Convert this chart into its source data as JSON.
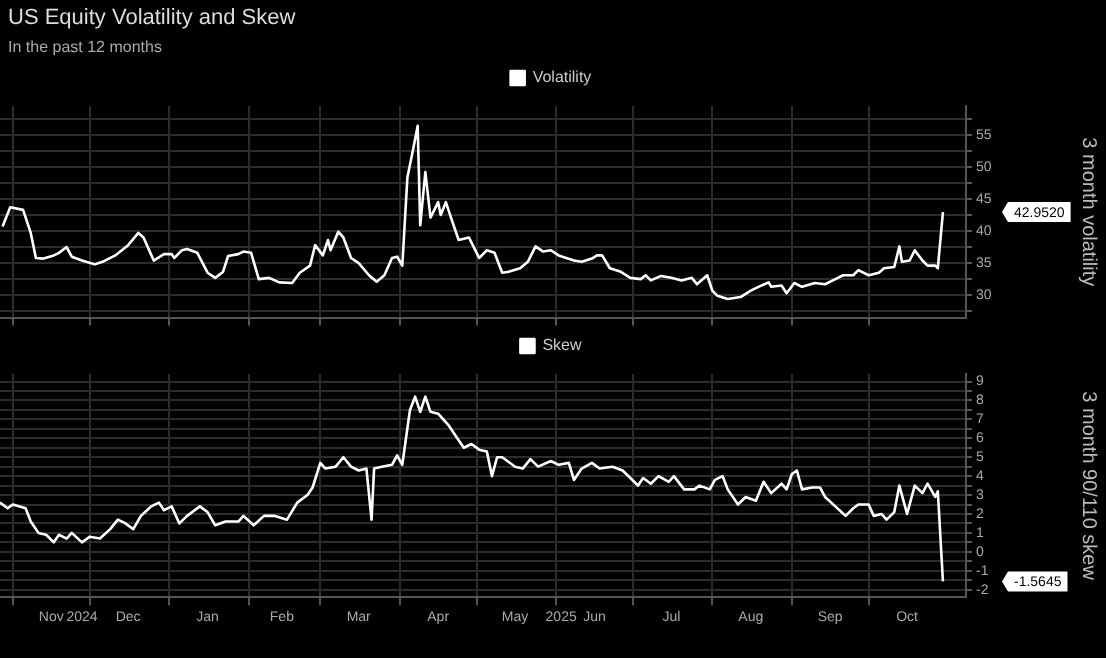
{
  "chart_data": [
    {
      "type": "line",
      "title": "US Equity Volatility and Skew",
      "subtitle": "In the past 12 months",
      "ylabel": "3 month volatility",
      "x": [
        "2024-10-28",
        "2024-10-31",
        "2024-11-05",
        "2024-11-08",
        "2024-11-10",
        "2024-11-13",
        "2024-11-17",
        "2024-11-19",
        "2024-11-22",
        "2024-11-24",
        "2024-11-28",
        "2024-12-03",
        "2024-12-06",
        "2024-12-11",
        "2024-12-16",
        "2024-12-20",
        "2024-12-22",
        "2024-12-26",
        "2024-12-30",
        "2025-01-02",
        "2025-01-03",
        "2025-01-06",
        "2025-01-08",
        "2025-01-12",
        "2025-01-16",
        "2025-01-19",
        "2025-01-22",
        "2025-01-24",
        "2025-01-28",
        "2025-01-30",
        "2025-02-02",
        "2025-02-05",
        "2025-02-09",
        "2025-02-13",
        "2025-02-18",
        "2025-02-21",
        "2025-02-25",
        "2025-02-27",
        "2025-03-02",
        "2025-03-04",
        "2025-03-05",
        "2025-03-08",
        "2025-03-10",
        "2025-03-13",
        "2025-03-16",
        "2025-03-20",
        "2025-03-23",
        "2025-03-26",
        "2025-03-29",
        "2025-03-31",
        "2025-04-02",
        "2025-04-04",
        "2025-04-06",
        "2025-04-08",
        "2025-04-09",
        "2025-04-11",
        "2025-04-13",
        "2025-04-16",
        "2025-04-17",
        "2025-04-19",
        "2025-04-21",
        "2025-04-24",
        "2025-04-28",
        "2025-05-02",
        "2025-05-05",
        "2025-05-08",
        "2025-05-11",
        "2025-05-13",
        "2025-05-18",
        "2025-05-21",
        "2025-05-24",
        "2025-05-27",
        "2025-05-30",
        "2025-06-02",
        "2025-06-05",
        "2025-06-08",
        "2025-06-11",
        "2025-06-15",
        "2025-06-17",
        "2025-06-19",
        "2025-06-22",
        "2025-06-26",
        "2025-06-30",
        "2025-07-04",
        "2025-07-06",
        "2025-07-08",
        "2025-07-12",
        "2025-07-16",
        "2025-07-20",
        "2025-07-24",
        "2025-07-26",
        "2025-07-30",
        "2025-08-01",
        "2025-08-03",
        "2025-08-07",
        "2025-08-12",
        "2025-08-16",
        "2025-08-19",
        "2025-08-23",
        "2025-08-24",
        "2025-08-28",
        "2025-08-30",
        "2025-09-02",
        "2025-09-05",
        "2025-09-10",
        "2025-09-14",
        "2025-09-18",
        "2025-09-21",
        "2025-09-25",
        "2025-09-27",
        "2025-10-01",
        "2025-10-05",
        "2025-10-07",
        "2025-10-11",
        "2025-10-13",
        "2025-10-14",
        "2025-10-17",
        "2025-10-19",
        "2025-10-22",
        "2025-10-24",
        "2025-10-27",
        "2025-10-28",
        "2025-10-30"
      ],
      "series": [
        {
          "name": "Volatility",
          "color": "#ffffff",
          "values": [
            40.7,
            43.7,
            43.3,
            39.7,
            35.8,
            35.7,
            36.2,
            36.6,
            37.5,
            36.0,
            35.4,
            34.8,
            35.2,
            36.2,
            37.8,
            39.7,
            39.0,
            35.4,
            36.4,
            36.4,
            35.8,
            37.0,
            37.2,
            36.6,
            33.5,
            32.7,
            33.6,
            36.1,
            36.4,
            36.8,
            36.6,
            32.5,
            32.7,
            32.0,
            31.9,
            33.5,
            34.6,
            37.8,
            36.2,
            38.6,
            37.0,
            39.9,
            39.0,
            35.8,
            35.0,
            33.1,
            32.1,
            33.1,
            35.8,
            36.0,
            34.6,
            48.4,
            52.3,
            56.4,
            40.9,
            49.2,
            42.1,
            44.5,
            42.5,
            44.5,
            42.1,
            38.6,
            39.0,
            35.8,
            37.0,
            36.6,
            33.5,
            33.6,
            34.2,
            35.2,
            37.6,
            36.8,
            37.0,
            36.2,
            35.8,
            35.4,
            35.2,
            35.7,
            36.2,
            36.2,
            34.2,
            33.7,
            32.7,
            32.5,
            33.1,
            32.3,
            33.0,
            32.7,
            32.3,
            32.7,
            31.7,
            33.1,
            30.7,
            29.9,
            29.4,
            29.7,
            30.7,
            31.3,
            32.0,
            31.3,
            31.5,
            30.3,
            31.9,
            31.3,
            31.9,
            31.7,
            32.5,
            33.1,
            33.1,
            33.9,
            33.1,
            33.5,
            34.2,
            34.4,
            37.6,
            35.2,
            35.4,
            37.0,
            35.4,
            34.6,
            34.6,
            34.2,
            42.952
          ]
        }
      ],
      "xlim": [
        "2024-10-27",
        "2025-11-08"
      ],
      "xticks": [
        {
          "value": "2024-11-01",
          "label": null
        },
        {
          "value": "2024-12-01",
          "label": null
        },
        {
          "value": "2025-01-01",
          "label": null
        },
        {
          "value": "2025-02-01",
          "label": null
        },
        {
          "value": "2025-03-01",
          "label": null
        },
        {
          "value": "2025-04-01",
          "label": null
        },
        {
          "value": "2025-05-01",
          "label": null
        },
        {
          "value": "2025-06-01",
          "label": null
        },
        {
          "value": "2025-07-01",
          "label": null
        },
        {
          "value": "2025-08-01",
          "label": null
        },
        {
          "value": "2025-09-01",
          "label": null
        },
        {
          "value": "2025-10-01",
          "label": null
        }
      ],
      "ylim": [
        26.5,
        59.5
      ],
      "yticks": [
        {
          "value": 27.5,
          "label": null
        },
        30,
        {
          "value": 32.5,
          "label": null
        },
        35,
        {
          "value": 37.5,
          "label": null
        },
        40,
        {
          "value": 42.5,
          "label": null
        },
        45,
        {
          "value": 47.5,
          "label": null
        },
        50,
        {
          "value": 52.5,
          "label": null
        },
        55,
        {
          "value": 57.5,
          "label": null
        }
      ],
      "annotations": [
        "42.9520"
      ],
      "grid": true,
      "legend": "top",
      "tick_labels": "y"
    },
    {
      "type": "line",
      "ylabel": "3 month 90/110 skew",
      "x": [
        "2024-10-27",
        "2024-10-30",
        "2024-11-01",
        "2024-11-06",
        "2024-11-08",
        "2024-11-11",
        "2024-11-14",
        "2024-11-17",
        "2024-11-19",
        "2024-11-22",
        "2024-11-24",
        "2024-11-28",
        "2024-12-01",
        "2024-12-05",
        "2024-12-09",
        "2024-12-12",
        "2024-12-15",
        "2024-12-18",
        "2024-12-21",
        "2024-12-25",
        "2024-12-28",
        "2024-12-30",
        "2025-01-02",
        "2025-01-05",
        "2025-01-08",
        "2025-01-13",
        "2025-01-16",
        "2025-01-19",
        "2025-01-23",
        "2025-01-28",
        "2025-01-30",
        "2025-02-03",
        "2025-02-07",
        "2025-02-11",
        "2025-02-16",
        "2025-02-20",
        "2025-02-24",
        "2025-02-26",
        "2025-03-01",
        "2025-03-03",
        "2025-03-07",
        "2025-03-10",
        "2025-03-13",
        "2025-03-16",
        "2025-03-19",
        "2025-03-21",
        "2025-03-22",
        "2025-03-25",
        "2025-03-29",
        "2025-03-31",
        "2025-04-02",
        "2025-04-05",
        "2025-04-07",
        "2025-04-09",
        "2025-04-11",
        "2025-04-13",
        "2025-04-16",
        "2025-04-20",
        "2025-04-23",
        "2025-04-26",
        "2025-04-29",
        "2025-05-02",
        "2025-05-05",
        "2025-05-07",
        "2025-05-09",
        "2025-05-11",
        "2025-05-13",
        "2025-05-16",
        "2025-05-19",
        "2025-05-22",
        "2025-05-25",
        "2025-05-30",
        "2025-06-02",
        "2025-06-06",
        "2025-06-08",
        "2025-06-11",
        "2025-06-15",
        "2025-06-18",
        "2025-06-23",
        "2025-06-27",
        "2025-06-30",
        "2025-07-03",
        "2025-07-05",
        "2025-07-08",
        "2025-07-11",
        "2025-07-15",
        "2025-07-17",
        "2025-07-21",
        "2025-07-25",
        "2025-07-27",
        "2025-07-31",
        "2025-08-02",
        "2025-08-05",
        "2025-08-07",
        "2025-08-11",
        "2025-08-14",
        "2025-08-18",
        "2025-08-21",
        "2025-08-24",
        "2025-08-28",
        "2025-08-30",
        "2025-09-01",
        "2025-09-03",
        "2025-09-05",
        "2025-09-09",
        "2025-09-12",
        "2025-09-14",
        "2025-09-18",
        "2025-09-22",
        "2025-09-25",
        "2025-09-27",
        "2025-10-01",
        "2025-10-03",
        "2025-10-06",
        "2025-10-08",
        "2025-10-11",
        "2025-10-13",
        "2025-10-16",
        "2025-10-19",
        "2025-10-22",
        "2025-10-24",
        "2025-10-27",
        "2025-10-28",
        "2025-10-30"
      ],
      "series": [
        {
          "name": "Skew",
          "color": "#ffffff",
          "values": [
            2.6,
            2.3,
            2.5,
            2.3,
            1.6,
            1.0,
            0.9,
            0.5,
            0.9,
            0.7,
            1.0,
            0.5,
            0.8,
            0.7,
            1.2,
            1.7,
            1.5,
            1.2,
            1.9,
            2.4,
            2.6,
            2.2,
            2.4,
            1.5,
            1.9,
            2.4,
            2.1,
            1.4,
            1.6,
            1.6,
            1.9,
            1.4,
            1.9,
            1.9,
            1.7,
            2.6,
            3.0,
            3.4,
            4.7,
            4.4,
            4.5,
            5.0,
            4.5,
            4.3,
            4.4,
            1.7,
            4.4,
            4.5,
            4.6,
            5.1,
            4.6,
            7.5,
            8.2,
            7.4,
            8.2,
            7.4,
            7.3,
            6.7,
            6.1,
            5.5,
            5.7,
            5.4,
            5.3,
            4.0,
            5.0,
            5.0,
            4.8,
            4.5,
            4.4,
            4.9,
            4.5,
            4.8,
            4.6,
            4.7,
            3.8,
            4.4,
            4.7,
            4.4,
            4.5,
            4.3,
            3.9,
            3.5,
            3.9,
            3.6,
            4.0,
            3.7,
            4.0,
            3.3,
            3.3,
            3.5,
            3.3,
            3.8,
            4.0,
            3.3,
            2.5,
            2.9,
            2.7,
            3.7,
            3.1,
            3.6,
            3.3,
            4.1,
            4.3,
            3.3,
            3.4,
            3.4,
            2.9,
            2.4,
            1.9,
            2.3,
            2.5,
            2.5,
            1.9,
            2.0,
            1.7,
            2.1,
            3.5,
            2.0,
            3.5,
            3.1,
            3.6,
            2.9,
            3.2,
            -1.5645
          ]
        }
      ],
      "xlim": [
        "2024-10-27",
        "2025-11-08"
      ],
      "xticks": [
        {
          "value": "2024-11-01",
          "label": null
        },
        {
          "value": "2024-11-16",
          "label": "Nov"
        },
        {
          "value": "2024-11-28",
          "label": "2024"
        },
        {
          "value": "2024-12-01",
          "label": null
        },
        {
          "value": "2024-12-16",
          "label": "Dec"
        },
        {
          "value": "2025-01-01",
          "label": null
        },
        {
          "value": "2025-01-16",
          "label": "Jan"
        },
        {
          "value": "2025-02-01",
          "label": null
        },
        {
          "value": "2025-02-14",
          "label": "Feb"
        },
        {
          "value": "2025-03-01",
          "label": null
        },
        {
          "value": "2025-03-16",
          "label": "Mar"
        },
        {
          "value": "2025-04-01",
          "label": null
        },
        {
          "value": "2025-04-16",
          "label": "Apr"
        },
        {
          "value": "2025-05-01",
          "label": null
        },
        {
          "value": "2025-05-16",
          "label": "May"
        },
        {
          "value": "2025-06-01",
          "label": null
        },
        {
          "value": "2025-06-03",
          "label": "2025"
        },
        {
          "value": "2025-06-16",
          "label": "Jun"
        },
        {
          "value": "2025-07-01",
          "label": null
        },
        {
          "value": "2025-07-16",
          "label": "Jul"
        },
        {
          "value": "2025-08-01",
          "label": null
        },
        {
          "value": "2025-08-16",
          "label": "Aug"
        },
        {
          "value": "2025-09-01",
          "label": null
        },
        {
          "value": "2025-09-16",
          "label": "Sep"
        },
        {
          "value": "2025-10-01",
          "label": null
        },
        {
          "value": "2025-10-16",
          "label": "Oct"
        }
      ],
      "ylim": [
        -2.4,
        9.4
      ],
      "yticks": [
        {
          "value": -2,
          "label": "-2"
        },
        {
          "value": -1.5,
          "label": null
        },
        {
          "value": -1,
          "label": "-1"
        },
        {
          "value": -0.5,
          "label": null
        },
        0,
        {
          "value": 0.5,
          "label": null
        },
        1,
        {
          "value": 1.5,
          "label": null
        },
        2,
        {
          "value": 2.5,
          "label": null
        },
        3,
        {
          "value": 3.5,
          "label": null
        },
        4,
        {
          "value": 4.5,
          "label": null
        },
        5,
        {
          "value": 5.5,
          "label": null
        },
        6,
        {
          "value": 6.5,
          "label": null
        },
        7,
        {
          "value": 7.5,
          "label": null
        },
        8,
        {
          "value": 8.5,
          "label": null
        },
        9
      ],
      "annotations": [
        "-1.5645"
      ],
      "grid": true,
      "legend": "top"
    }
  ]
}
